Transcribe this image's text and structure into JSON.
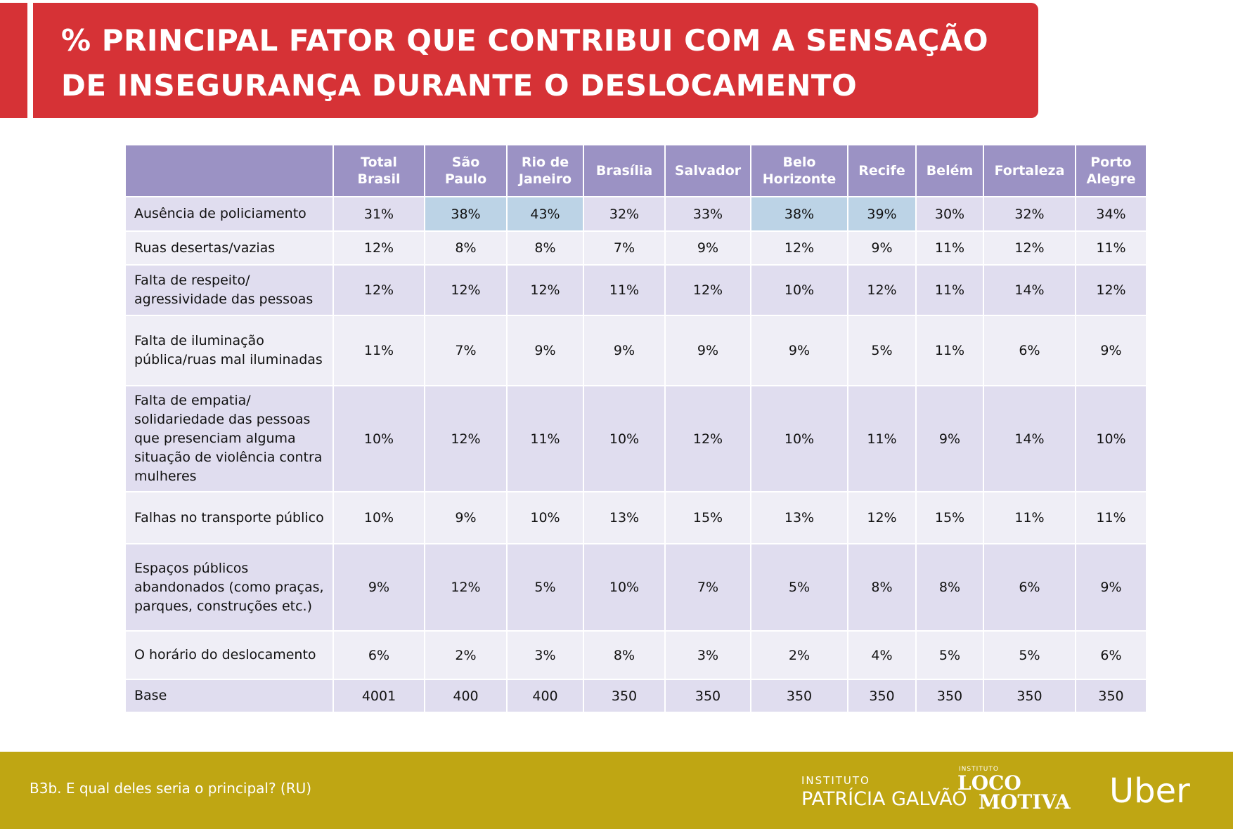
{
  "header": {
    "title": "% PRINCIPAL FATOR QUE CONTRIBUI COM A SENSAÇÃO DE INSEGURANÇA DURANTE O DESLOCAMENTO"
  },
  "table": {
    "columns": [
      "Total\nBrasil",
      "São\nPaulo",
      "Rio de\nJaneiro",
      "Brasília",
      "Salvador",
      "Belo\nHorizonte",
      "Recife",
      "Belém",
      "Fortaleza",
      "Porto\nAlegre"
    ],
    "rows": [
      [
        "Ausência de policiamento",
        "31%",
        "38%",
        "43%",
        "32%",
        "33%",
        "38%",
        "39%",
        "30%",
        "32%",
        "34%"
      ],
      [
        "Ruas desertas/vazias",
        "12%",
        "8%",
        "8%",
        "7%",
        "9%",
        "12%",
        "9%",
        "11%",
        "12%",
        "11%"
      ],
      [
        "Falta de respeito/ agressividade das pessoas",
        "12%",
        "12%",
        "12%",
        "11%",
        "12%",
        "10%",
        "12%",
        "11%",
        "14%",
        "12%"
      ],
      [
        "Falta de iluminação pública/ruas mal iluminadas",
        "11%",
        "7%",
        "9%",
        "9%",
        "9%",
        "9%",
        "5%",
        "11%",
        "6%",
        "9%"
      ],
      [
        "Falta de empatia/ solidariedade das pessoas que presenciam alguma situação de violência contra mulheres",
        "10%",
        "12%",
        "11%",
        "10%",
        "12%",
        "10%",
        "11%",
        "9%",
        "14%",
        "10%"
      ],
      [
        "Falhas no transporte público",
        "10%",
        "9%",
        "10%",
        "13%",
        "15%",
        "13%",
        "12%",
        "15%",
        "11%",
        "11%"
      ],
      [
        "Espaços públicos abandonados (como praças, parques, construções etc.)",
        "9%",
        "12%",
        "5%",
        "10%",
        "7%",
        "5%",
        "8%",
        "8%",
        "6%",
        "9%"
      ],
      [
        "O horário do deslocamento",
        "6%",
        "2%",
        "3%",
        "8%",
        "3%",
        "2%",
        "4%",
        "5%",
        "5%",
        "6%"
      ],
      [
        "Base",
        "4001",
        "400",
        "400",
        "350",
        "350",
        "350",
        "350",
        "350",
        "350",
        "350"
      ]
    ],
    "highlight_color": "#bcd3e6",
    "highlighted": [
      [
        0,
        2
      ],
      [
        0,
        3
      ],
      [
        0,
        6
      ],
      [
        0,
        7
      ]
    ]
  },
  "footer": {
    "note": "B3b. E qual deles seria o principal? (RU)",
    "logos": [
      "INSTITUTO",
      "PATRÍCIA GALVÃO",
      "INSTITUTO",
      "LOCO",
      "MOTIVA",
      "Uber"
    ]
  }
}
